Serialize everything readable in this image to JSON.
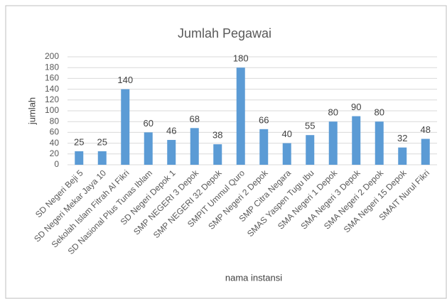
{
  "chart_data": {
    "type": "bar",
    "title": "Jumlah Pegawai",
    "x_label": "nama instansi",
    "y_label": "jumlah",
    "categories": [
      "SD Negeri Beji 5",
      "SD Negeri Mekar Jaya 10",
      "Sekolah Islam Fitrah Al Fikri",
      "SD Nasional Plus Tunas Iblam",
      "SD Negeri Depok 1",
      "SMP NEGERI 3 Depok",
      "SMP NEGERI 32 Depok",
      "SMPIT Ummul Quro",
      "SMP Negeri 2 Depok",
      "SMP Citra Negara",
      "SMAS Yaspen Tugu Ibu",
      "SMA Negeri 1 Depok",
      "SMA Negeri 3 Depok",
      "SMA Negeri 2 Depok",
      "SMA Negeri 15 Depok",
      "SMAIT Nurul Fikri"
    ],
    "values": [
      25,
      25,
      140,
      60,
      46,
      68,
      38,
      180,
      66,
      40,
      55,
      80,
      90,
      80,
      32,
      48
    ],
    "color": "#5b9bd5",
    "ylim": [
      0,
      200
    ],
    "yticks": [
      0,
      20,
      40,
      60,
      80,
      100,
      120,
      140,
      160,
      180,
      200
    ],
    "grid": true
  }
}
